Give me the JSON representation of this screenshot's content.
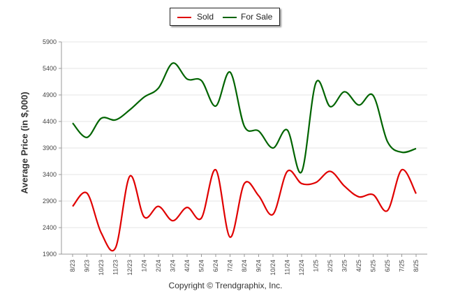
{
  "chart_data": {
    "type": "line",
    "ylabel": "Average Price (in $,000)",
    "xlabel": "",
    "ylim": [
      1900,
      5900
    ],
    "yticks": [
      1900,
      2400,
      2900,
      3400,
      3900,
      4400,
      4900,
      5400,
      5900
    ],
    "ytick_labels": [
      "1900",
      "2400",
      "2900",
      "3400",
      "3900",
      "4400",
      "4900",
      "5400",
      "5900"
    ],
    "categories": [
      "8/23",
      "9/23",
      "10/23",
      "11/23",
      "12/23",
      "1/24",
      "2/24",
      "3/24",
      "4/24",
      "5/24",
      "6/24",
      "7/24",
      "8/24",
      "9/24",
      "10/24",
      "11/24",
      "12/24",
      "1/25",
      "2/25",
      "3/25",
      "4/25",
      "5/25",
      "6/25",
      "7/25",
      "8/25"
    ],
    "series": [
      {
        "name": "Sold",
        "color": "#e00000",
        "values": [
          2800,
          3050,
          2300,
          2020,
          3370,
          2600,
          2800,
          2530,
          2780,
          2580,
          3490,
          2220,
          3230,
          3000,
          2650,
          3460,
          3230,
          3250,
          3460,
          3180,
          2980,
          3020,
          2720,
          3490,
          3040
        ]
      },
      {
        "name": "For Sale",
        "color": "#006400",
        "values": [
          4370,
          4100,
          4460,
          4430,
          4620,
          4860,
          5030,
          5500,
          5200,
          5170,
          4690,
          5330,
          4310,
          4220,
          3900,
          4240,
          3450,
          5130,
          4680,
          4960,
          4710,
          4890,
          4020,
          3820,
          3890
        ]
      }
    ],
    "legend_position": "top-center",
    "grid": true
  },
  "copyright": "Copyright © Trendgraphix, Inc."
}
